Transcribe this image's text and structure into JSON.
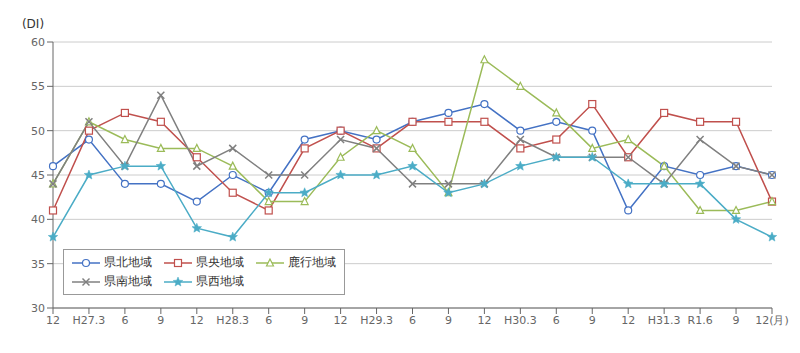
{
  "chart_data": {
    "type": "line",
    "y_label": "(DI)",
    "categories": [
      "12",
      "H27.3",
      "6",
      "9",
      "12",
      "H28.3",
      "6",
      "9",
      "12",
      "H29.3",
      "6",
      "9",
      "12",
      "H30.3",
      "6",
      "9",
      "12",
      "H31.3",
      "R1.6",
      "9",
      "12(月)"
    ],
    "series": [
      {
        "name": "県北地域",
        "color": "#4472C4",
        "marker": "circle",
        "values": [
          46,
          49,
          44,
          44,
          42,
          45,
          43,
          49,
          50,
          49,
          51,
          52,
          53,
          50,
          51,
          50,
          41,
          46,
          45,
          46,
          45
        ]
      },
      {
        "name": "県央地域",
        "color": "#C0504D",
        "marker": "square",
        "values": [
          41,
          50,
          52,
          51,
          47,
          43,
          41,
          48,
          50,
          48,
          51,
          51,
          51,
          48,
          49,
          53,
          47,
          52,
          51,
          51,
          42
        ]
      },
      {
        "name": "鹿行地域",
        "color": "#9BBB59",
        "marker": "triangle",
        "values": [
          44,
          51,
          49,
          48,
          48,
          46,
          42,
          42,
          47,
          50,
          48,
          43,
          58,
          55,
          52,
          48,
          49,
          46,
          41,
          41,
          42
        ]
      },
      {
        "name": "県南地域",
        "color": "#808080",
        "marker": "x",
        "values": [
          44,
          51,
          46,
          54,
          46,
          48,
          45,
          45,
          49,
          48,
          44,
          44,
          44,
          49,
          47,
          47,
          47,
          44,
          49,
          46,
          45
        ]
      },
      {
        "name": "県西地域",
        "color": "#4BACC6",
        "marker": "star",
        "values": [
          38,
          45,
          46,
          46,
          39,
          38,
          43,
          43,
          45,
          45,
          46,
          43,
          44,
          46,
          47,
          47,
          44,
          44,
          44,
          40,
          38
        ]
      }
    ],
    "ylim": [
      30,
      60
    ],
    "yticks": [
      30,
      35,
      40,
      45,
      50,
      55,
      60
    ],
    "grid": true,
    "legend": "lower left"
  }
}
